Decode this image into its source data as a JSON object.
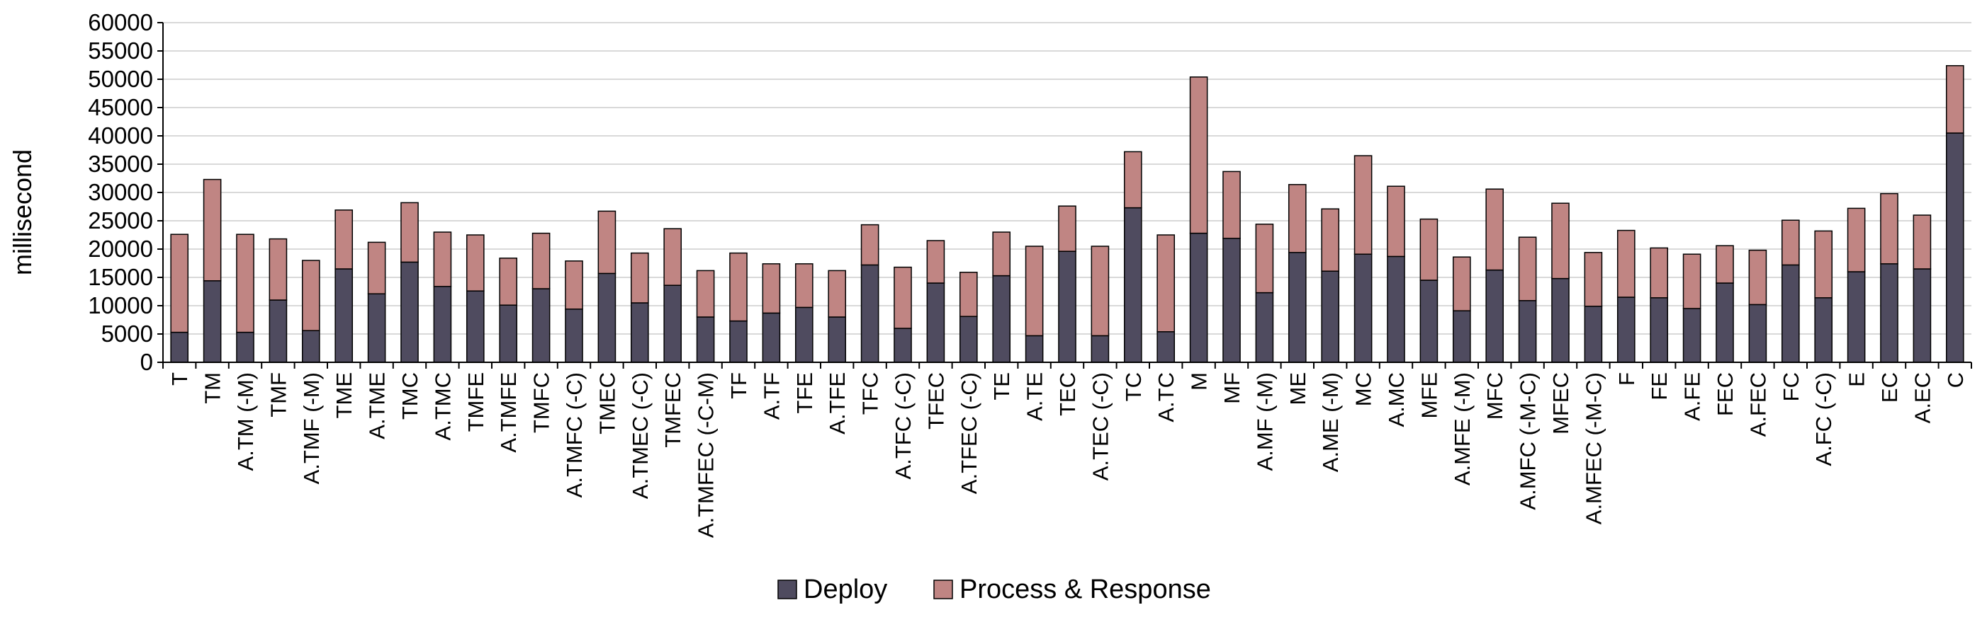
{
  "chart_data": {
    "type": "bar",
    "stacked": true,
    "title": "",
    "xlabel": "",
    "ylabel": "millisecond",
    "ylim": [
      0,
      60000
    ],
    "yticks": [
      0,
      5000,
      10000,
      15000,
      20000,
      25000,
      30000,
      35000,
      40000,
      45000,
      50000,
      55000,
      60000
    ],
    "grid": "horizontal",
    "legend_position": "bottom",
    "categories": [
      "T",
      "TM",
      "A.TM (-M)",
      "TMF",
      "A.TMF (-M)",
      "TME",
      "A.TME",
      "TMC",
      "A.TMC",
      "TMFE",
      "A.TMFE",
      "TMFC",
      "A.TMFC (-C)",
      "TMEC",
      "A.TMEC (-C)",
      "TMFEC",
      "A.TMFEC (-C-M)",
      "TF",
      "A.TF",
      "TFE",
      "A.TFE",
      "TFC",
      "A.TFC (-C)",
      "TFEC",
      "A.TFEC (-C)",
      "TE",
      "A.TE",
      "TEC",
      "A.TEC (-C)",
      "TC",
      "A.TC",
      "M",
      "MF",
      "A.MF (-M)",
      "ME",
      "A.ME (-M)",
      "MC",
      "A.MC",
      "MFE",
      "A.MFE (-M)",
      "MFC",
      "A.MFC (-M-C)",
      "MFEC",
      "A.MFEC (-M-C)",
      "F",
      "FE",
      "A.FE",
      "FEC",
      "A.FEC",
      "FC",
      "A.FC (-C)",
      "E",
      "EC",
      "A.EC",
      "C"
    ],
    "series": [
      {
        "name": "Deploy",
        "color": "#4f4b5f",
        "values": [
          5300,
          14400,
          5300,
          11000,
          5600,
          16500,
          12100,
          17700,
          13400,
          12600,
          10100,
          13000,
          9400,
          15700,
          10500,
          13600,
          8000,
          7300,
          8700,
          9700,
          8000,
          17200,
          6000,
          14000,
          8100,
          15300,
          4700,
          19600,
          4700,
          27300,
          5400,
          22800,
          21900,
          12300,
          19400,
          16100,
          19100,
          18700,
          14500,
          9100,
          16300,
          10900,
          14800,
          9900,
          11500,
          11400,
          9500,
          14000,
          10200,
          17200,
          11400,
          16000,
          17400,
          16500,
          40500
        ]
      },
      {
        "name": "Process & Response",
        "color": "#c08583",
        "values": [
          17300,
          17900,
          17300,
          10800,
          12400,
          10400,
          9100,
          10500,
          9600,
          9900,
          8300,
          9800,
          8500,
          11000,
          8800,
          10000,
          8200,
          12000,
          8700,
          7700,
          8200,
          7100,
          10800,
          7500,
          7800,
          7700,
          15800,
          8000,
          15800,
          9900,
          17100,
          27600,
          11800,
          12100,
          12000,
          11000,
          17400,
          12400,
          10800,
          9500,
          14300,
          11200,
          13300,
          9500,
          11800,
          8800,
          9600,
          6600,
          9600,
          7900,
          11800,
          11200,
          12400,
          9500,
          11900
        ]
      }
    ]
  }
}
